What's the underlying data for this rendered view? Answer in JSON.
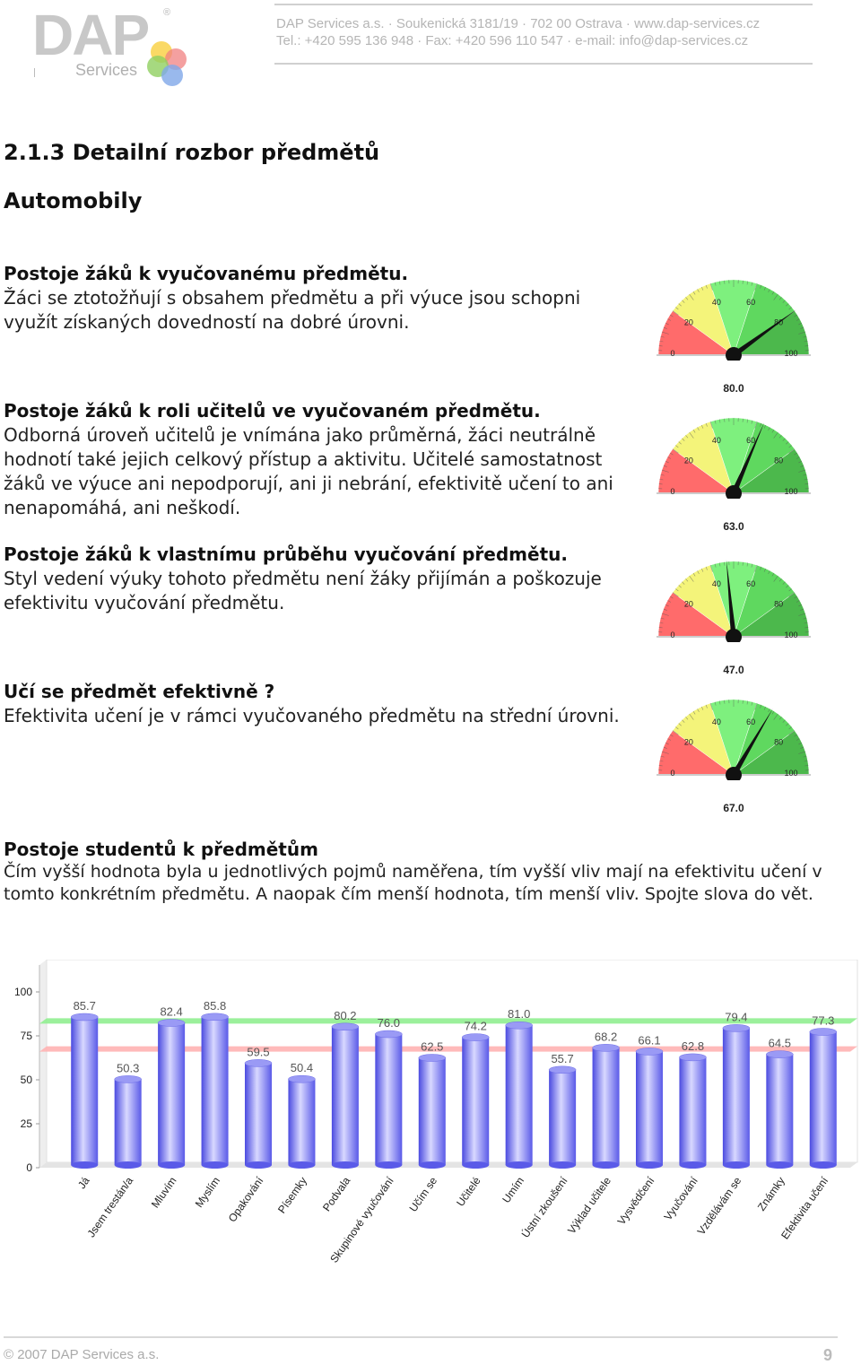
{
  "header": {
    "logo_main": "DAP",
    "logo_reg": "®",
    "logo_sub": "Services",
    "line1": "DAP Services a.s.  ·  Soukenická 3181/19  ·  702 00 Ostrava  ·  www.dap-services.cz",
    "line2": "Tel.:  +420 595 136 948  ·  Fax:  +420 596 110 547  ·  e-mail: info@dap-services.cz"
  },
  "section_title": "2.1.3 Detailní rozbor předmětů",
  "subject_title": "Automobily",
  "blocks": [
    {
      "title": "Postoje žáků k vyučovanému předmětu.",
      "text": "Žáci se ztotožňují s obsahem předmětu a při výuce jsou schopni využít získaných dovedností na dobré úrovni."
    },
    {
      "title": "Postoje žáků k roli učitelů ve vyučovaném předmětu.",
      "text": "Odborná úroveň učitelů je vnímána jako průměrná, žáci neutrálně hodnotí také jejich celkový přístup a aktivitu. Učitelé samostatnost žáků ve výuce ani nepodporují, ani ji nebrání, efektivitě učení to ani nenapomáhá, ani neškodí."
    },
    {
      "title": "Postoje žáků k vlastnímu průběhu vyučování předmětu.",
      "text": "Styl vedení výuky tohoto předmětu není žáky přijímán a poškozuje efektivitu vyučování předmětu."
    },
    {
      "title": "Učí se předmět efektivně ?",
      "text": "Efektivita učení je v rámci vyučovaného předmětu na střední úrovni."
    }
  ],
  "gauges": [
    {
      "value": 80.0,
      "label": "80.0"
    },
    {
      "value": 63.0,
      "label": "63.0"
    },
    {
      "value": 47.0,
      "label": "47.0"
    },
    {
      "value": 67.0,
      "label": "67.0"
    }
  ],
  "gauge_ticks": [
    "0",
    "20",
    "40",
    "60",
    "80",
    "100"
  ],
  "students_title": "Postoje studentů k předmětům",
  "students_text": "Čím vyšší hodnota byla u jednotlivých pojmů naměřena, tím vyšší vliv mají na efektivitu učení v tomto konkrétním předmětu. A naopak čím menší hodnota, tím menší vliv. Spojte slova do vět.",
  "chart_data": {
    "type": "bar",
    "categories": [
      "Já",
      "Jsem trestán/a",
      "Mluvím",
      "Myslím",
      "Opakování",
      "Písemky",
      "Podvala",
      "Skupinové vyučování",
      "Učím se",
      "Učitelé",
      "Umím",
      "Ústní zkoušení",
      "Výklad učitele",
      "Vysvědčení",
      "Vyučování",
      "Vzdělávám se",
      "Známky",
      "Efektivita učení"
    ],
    "values": [
      85.7,
      50.3,
      82.4,
      85.8,
      59.5,
      50.4,
      80.2,
      76.0,
      62.5,
      74.2,
      81.0,
      55.7,
      68.2,
      66.1,
      62.8,
      79.4,
      64.5,
      77.3
    ],
    "value_labels": [
      "85.7",
      "50.3",
      "82.4",
      "85.8",
      "59.5",
      "50.4",
      "80.2",
      "76.0",
      "62.5",
      "74.2",
      "81.0",
      "55.7",
      "68.2",
      "66.1",
      "62.8",
      "79.4",
      "64.5",
      "77.3"
    ],
    "yticks": [
      "0",
      "25",
      "50",
      "75",
      "100"
    ],
    "ylim": [
      0,
      100
    ],
    "reference_lines": [
      {
        "value": 83,
        "color": "#90ee90"
      },
      {
        "value": 67,
        "color": "#ffb3b3"
      }
    ],
    "bar_color": "#7b7bf0",
    "grid": false
  },
  "footer": {
    "copyright": "© 2007 DAP Services a.s.",
    "page": "9"
  }
}
